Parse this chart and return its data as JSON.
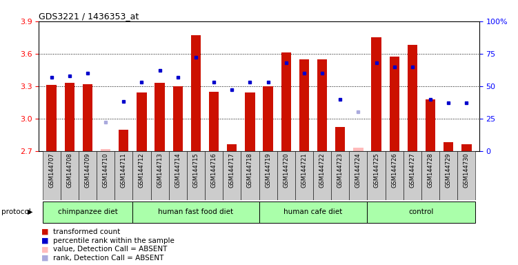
{
  "title": "GDS3221 / 1436353_at",
  "samples": [
    "GSM144707",
    "GSM144708",
    "GSM144709",
    "GSM144710",
    "GSM144711",
    "GSM144712",
    "GSM144713",
    "GSM144714",
    "GSM144715",
    "GSM144716",
    "GSM144717",
    "GSM144718",
    "GSM144719",
    "GSM144720",
    "GSM144721",
    "GSM144722",
    "GSM144723",
    "GSM144724",
    "GSM144725",
    "GSM144726",
    "GSM144727",
    "GSM144728",
    "GSM144729",
    "GSM144730"
  ],
  "bar_values": [
    3.31,
    3.33,
    3.32,
    2.72,
    2.9,
    3.24,
    3.33,
    3.3,
    3.77,
    3.25,
    2.76,
    3.24,
    3.3,
    3.61,
    3.55,
    3.55,
    2.92,
    2.73,
    3.75,
    3.57,
    3.68,
    3.18,
    2.78,
    2.76
  ],
  "bar_absent": [
    false,
    false,
    false,
    true,
    false,
    false,
    false,
    false,
    false,
    false,
    false,
    false,
    false,
    false,
    false,
    false,
    false,
    true,
    false,
    false,
    false,
    false,
    false,
    false
  ],
  "rank_values": [
    57,
    58,
    60,
    22,
    38,
    53,
    62,
    57,
    72,
    53,
    47,
    53,
    53,
    68,
    60,
    60,
    40,
    30,
    68,
    65,
    65,
    40,
    37,
    37
  ],
  "rank_absent": [
    false,
    false,
    false,
    true,
    false,
    false,
    false,
    false,
    false,
    false,
    false,
    false,
    false,
    false,
    false,
    false,
    false,
    true,
    false,
    false,
    false,
    false,
    false,
    false
  ],
  "groups": [
    {
      "label": "chimpanzee diet",
      "start": 0,
      "end": 4
    },
    {
      "label": "human fast food diet",
      "start": 5,
      "end": 11
    },
    {
      "label": "human cafe diet",
      "start": 12,
      "end": 17
    },
    {
      "label": "control",
      "start": 18,
      "end": 23
    }
  ],
  "ylim_left": [
    2.7,
    3.9
  ],
  "ylim_right": [
    0,
    100
  ],
  "yticks_left": [
    2.7,
    3.0,
    3.3,
    3.6,
    3.9
  ],
  "yticks_right": [
    0,
    25,
    50,
    75,
    100
  ],
  "bar_color": "#cc1100",
  "bar_absent_color": "#ffbbbb",
  "rank_color": "#0000cc",
  "rank_absent_color": "#aaaadd",
  "group_color": "#aaffaa",
  "xtick_bg": "#cccccc"
}
